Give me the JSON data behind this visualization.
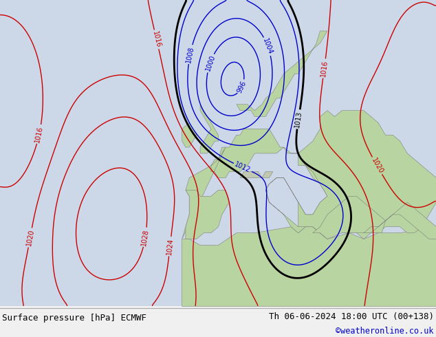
{
  "title_left": "Surface pressure [hPa] ECMWF",
  "title_right": "Th 06-06-2024 18:00 UTC (00+138)",
  "watermark": "©weatheronline.co.uk",
  "watermark_color": "#0000cc",
  "footer_text_color": "#000000",
  "footer_bg": "#f0f0f0",
  "map_bg_ocean": "#ccd8e8",
  "map_bg_land_eu": "#b8d4a0",
  "map_bg_land_dark": "#a8c898",
  "map_bg_mountain": "#c8c8c0",
  "line_red": "#cc0000",
  "line_blue": "#0000cc",
  "line_black": "#000000",
  "label_fontsize": 7,
  "footer_fontsize": 9
}
